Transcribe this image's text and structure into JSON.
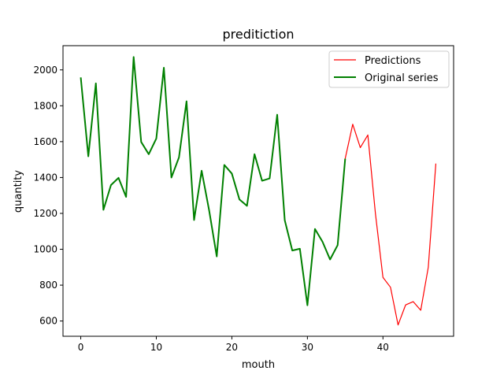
{
  "chart_data": {
    "type": "line",
    "title": "preditiction",
    "xlabel": "mouth",
    "ylabel": "quantity",
    "xlim": [
      -2.35,
      49.35
    ],
    "ylim": [
      515,
      2135
    ],
    "x_ticks": [
      0,
      10,
      20,
      30,
      40
    ],
    "y_ticks": [
      600,
      800,
      1000,
      1200,
      1400,
      1600,
      1800,
      2000
    ],
    "x_tick_labels": [
      "0",
      "10",
      "20",
      "30",
      "40"
    ],
    "y_tick_labels": [
      "600",
      "800",
      "1000",
      "1200",
      "1400",
      "1600",
      "1800",
      "2000"
    ],
    "grid": false,
    "legend_position": "top-right",
    "series": [
      {
        "name": "Predictions",
        "color": "#ff0000",
        "x": [
          35,
          36,
          37,
          38,
          39,
          40,
          41,
          42,
          43,
          44,
          45,
          46,
          47
        ],
        "values": [
          1505,
          1697,
          1567,
          1637,
          1200,
          843,
          788,
          578,
          690,
          708,
          660,
          900,
          1478
        ]
      },
      {
        "name": "Original series",
        "color": "#008000",
        "x": [
          0,
          1,
          2,
          3,
          4,
          5,
          6,
          7,
          8,
          9,
          10,
          11,
          12,
          13,
          14,
          15,
          16,
          17,
          18,
          19,
          20,
          21,
          22,
          23,
          24,
          25,
          26,
          27,
          28,
          29,
          30,
          31,
          32,
          33,
          34,
          35
        ],
        "values": [
          1958,
          1518,
          1925,
          1220,
          1358,
          1398,
          1292,
          2072,
          1598,
          1530,
          1617,
          2012,
          1400,
          1512,
          1825,
          1163,
          1438,
          1215,
          960,
          1470,
          1422,
          1278,
          1242,
          1530,
          1382,
          1395,
          1750,
          1162,
          993,
          1003,
          688,
          1113,
          1042,
          943,
          1023,
          1505
        ]
      }
    ]
  }
}
